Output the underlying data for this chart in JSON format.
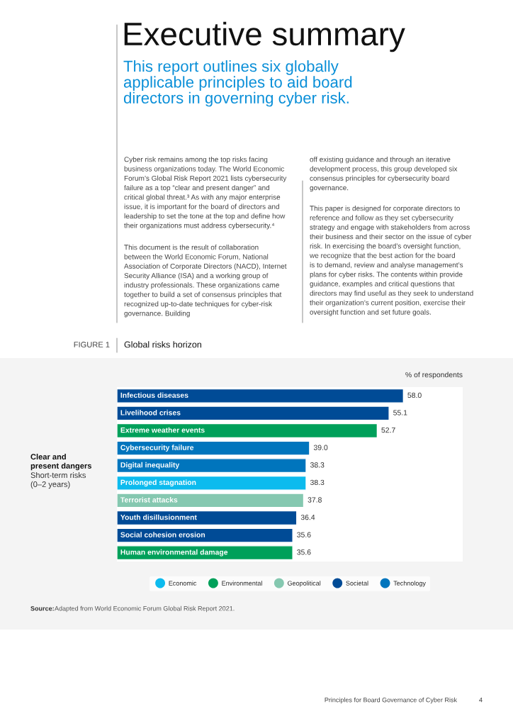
{
  "chart_data": {
    "type": "bar",
    "orientation": "horizontal",
    "title": "Global risks horizon",
    "xlabel": "% of respondents",
    "categories": [
      "Infectious diseases",
      "Livelihood crises",
      "Extreme weather events",
      "Cybersecurity failure",
      "Digital inequality",
      "Prolonged stagnation",
      "Terrorist attacks",
      "Youth disillusionment",
      "Social cohesion erosion",
      "Human environmental damage"
    ],
    "series": [
      {
        "name": "Economic",
        "color": "#0dbbee",
        "values": [
          null,
          null,
          null,
          null,
          null,
          38.3,
          null,
          null,
          null,
          null
        ],
        "value_labels": [
          null,
          null,
          null,
          null,
          null,
          "38.3",
          null,
          null,
          null,
          null
        ]
      },
      {
        "name": "Environmental",
        "color": "#00a05a",
        "values": [
          null,
          null,
          52.7,
          null,
          null,
          null,
          null,
          null,
          null,
          35.6
        ],
        "value_labels": [
          null,
          null,
          "52.7",
          null,
          null,
          null,
          null,
          null,
          null,
          "35.6"
        ]
      },
      {
        "name": "Geopolitical",
        "color": "#85c8b0",
        "values": [
          null,
          null,
          null,
          null,
          null,
          null,
          37.8,
          null,
          null,
          null
        ],
        "value_labels": [
          null,
          null,
          null,
          null,
          null,
          null,
          "37.8",
          null,
          null,
          null
        ]
      },
      {
        "name": "Societal",
        "color": "#004b96",
        "values": [
          58.0,
          55.1,
          null,
          null,
          null,
          null,
          null,
          36.4,
          35.6,
          null
        ],
        "value_labels": [
          "58.0",
          "55.1",
          null,
          null,
          null,
          null,
          null,
          "36.4",
          "35.6",
          null
        ]
      },
      {
        "name": "Technology",
        "color": "#0075bd",
        "values": [
          null,
          null,
          null,
          39.0,
          38.3,
          null,
          null,
          null,
          null,
          null
        ],
        "value_labels": [
          null,
          null,
          null,
          "39.0",
          "38.3",
          null,
          null,
          null,
          null,
          null
        ]
      }
    ],
    "xlim": [
      0,
      70
    ],
    "legend": "bottom",
    "annotations": [
      "Executive summary",
      "This report outlines six globally\napplicable principles to aid board\ndirectors in governing cyber risk.",
      "Cyber risk remains among the top risks facing\nbusiness organizations today. The World Economic\nForum’s Global Risk Report 2021 lists cybersecurity\nfailure as a top “clear and present danger” and\ncritical global threat.³ As with any major enterprise\nissue, it is important for the board of directors and\nleadership to set the tone at the top and define how\ntheir organizations must address cybersecurity.⁴",
      "This document is the result of collaboration\nbetween the World Economic Forum, National\nAssociation of Corporate Directors (NACD), Internet\nSecurity Alliance (ISA) and a working group of\nindustry professionals. These organizations came\ntogether to build a set of consensus principles that\nrecognized up-to-date techniques for cyber-risk\ngovernance. Building",
      "off existing guidance and through an iterative\ndevelopment process, this group developed six\nconsensus principles for cybersecurity board\ngovernance.",
      "This paper is designed for corporate directors to\nreference and follow as they set cybersecurity\nstrategy and engage with stakeholders from across\ntheir business and their sector on the issue of cyber\nrisk. In exercising the board’s oversight function,\nwe recognize that the best action for the board\nis to demand, review and analyse management’s\nplans for cyber risks. The contents within provide\nguidance, examples and critical questions that\ndirectors may find useful as they seek to understand\ntheir organization’s current position, exercise their\noversight function and set future goals.",
      "FIGURE 1",
      "Clear and\npresent dangers",
      "Short-term risks\n(0–2 years)",
      "Source:",
      "Adapted from World Economic Forum Global Risk Report 2021.",
      "Principles for Board Governance of Cyber Risk",
      "4"
    ]
  }
}
